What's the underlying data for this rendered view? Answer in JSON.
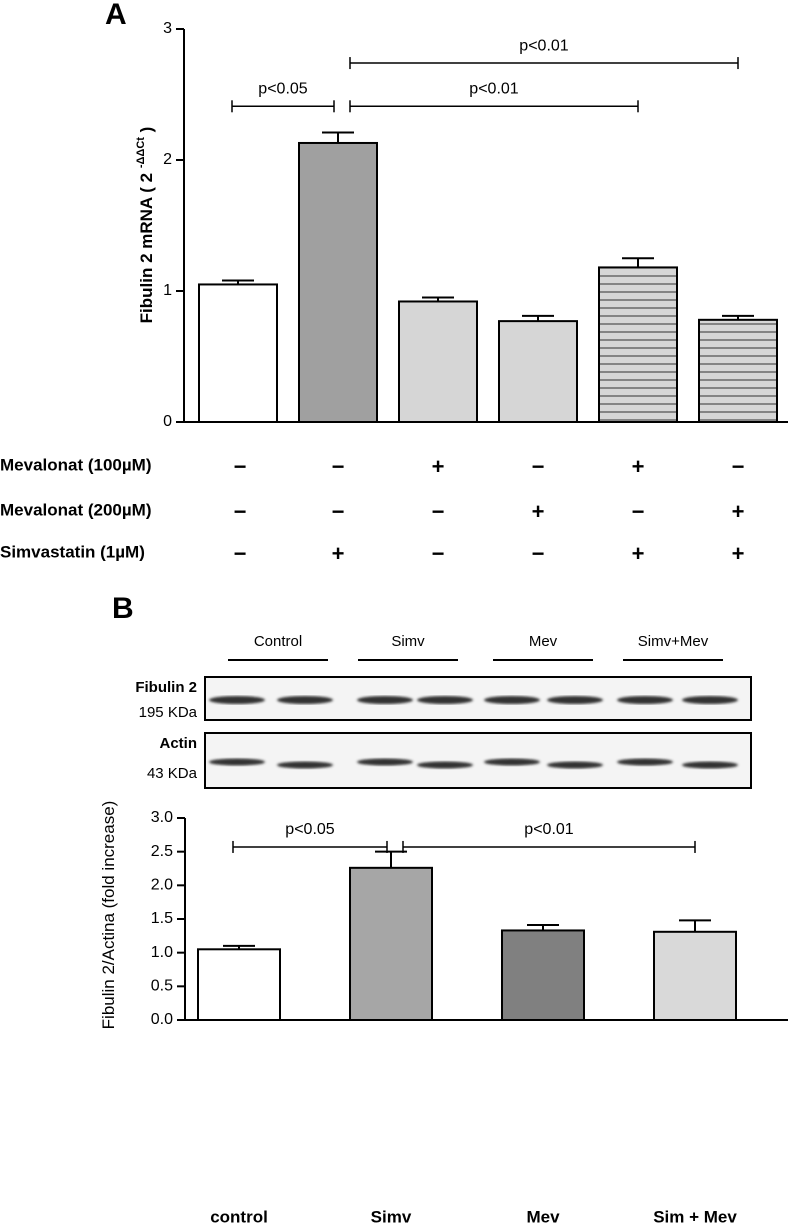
{
  "chart_data": [
    {
      "type": "bar",
      "label": "A",
      "ylabel": [
        "Fibulin 2 mRNA ( 2 ",
        "-ΔΔCt",
        " )"
      ],
      "categories": [
        null,
        null,
        null,
        null,
        null,
        null
      ],
      "values": [
        1.05,
        2.13,
        0.92,
        0.77,
        1.18,
        0.78
      ],
      "errors": [
        0.03,
        0.08,
        0.03,
        0.04,
        0.07,
        0.03
      ],
      "colors": [
        "#ffffff",
        "#a0a0a0",
        "#d6d6d6",
        "#d6d6d6",
        "#d6d6d6",
        "#d6d6d6"
      ],
      "hatch": [
        false,
        false,
        false,
        false,
        true,
        true
      ],
      "ylim": [
        0,
        3
      ],
      "yticks": [
        0,
        1,
        2,
        3
      ],
      "annotations": [
        {
          "text": "p<0.05",
          "from": 0,
          "to": 1,
          "y": 2.41
        },
        {
          "text": "p<0.01",
          "from": 1,
          "to": 4,
          "y": 2.41
        },
        {
          "text": "p<0.01",
          "from": 1,
          "to": 5,
          "y": 2.74
        }
      ],
      "conditions": [
        {
          "name": "Mevalonat (100µM)",
          "signs": [
            "−",
            "−",
            "+",
            "−",
            "+",
            "−"
          ]
        },
        {
          "name": "Mevalonat (200µM)",
          "signs": [
            "−",
            "−",
            "−",
            "+",
            "−",
            "+"
          ]
        },
        {
          "name": "Simvastatin (1µM)",
          "signs": [
            "−",
            "+",
            "−",
            "−",
            "+",
            "+"
          ]
        }
      ]
    },
    {
      "type": "bar",
      "label": "B",
      "ylabel": [
        "Fibulin 2/Actina (fold increase)"
      ],
      "categories": [
        "control",
        "Simv",
        "Mev",
        "Sim + Mev"
      ],
      "values": [
        1.05,
        2.26,
        1.33,
        1.31
      ],
      "errors": [
        0.05,
        0.24,
        0.08,
        0.17
      ],
      "colors": [
        "#ffffff",
        "#a6a6a6",
        "#808080",
        "#d9d9d9"
      ],
      "hatch": [
        false,
        false,
        false,
        false
      ],
      "ylim": [
        0,
        3.0
      ],
      "yticks": [
        {
          "value": 0,
          "label": "0.0"
        },
        {
          "value": 0.5,
          "label": "0.5"
        },
        {
          "value": 1,
          "label": "1.0"
        },
        {
          "value": 1.5,
          "label": "1.5"
        },
        {
          "value": 2,
          "label": "2.0"
        },
        {
          "value": 2.5,
          "label": "2.5"
        },
        {
          "value": 3,
          "label": "3.0"
        }
      ],
      "annotations": [
        {
          "text": "p<0.05",
          "from": 0,
          "to": 1,
          "y": 2.57
        },
        {
          "text": "p<0.01",
          "from": 1,
          "to": 3,
          "y": 2.57
        }
      ],
      "blot": {
        "groups": [
          "Control",
          "Simv",
          "Mev",
          "Simv+Mev"
        ],
        "bands": [
          {
            "name": "Fibulin 2",
            "size": "195 KDa"
          },
          {
            "name": "Actin",
            "size": "43 KDa"
          }
        ]
      }
    }
  ]
}
